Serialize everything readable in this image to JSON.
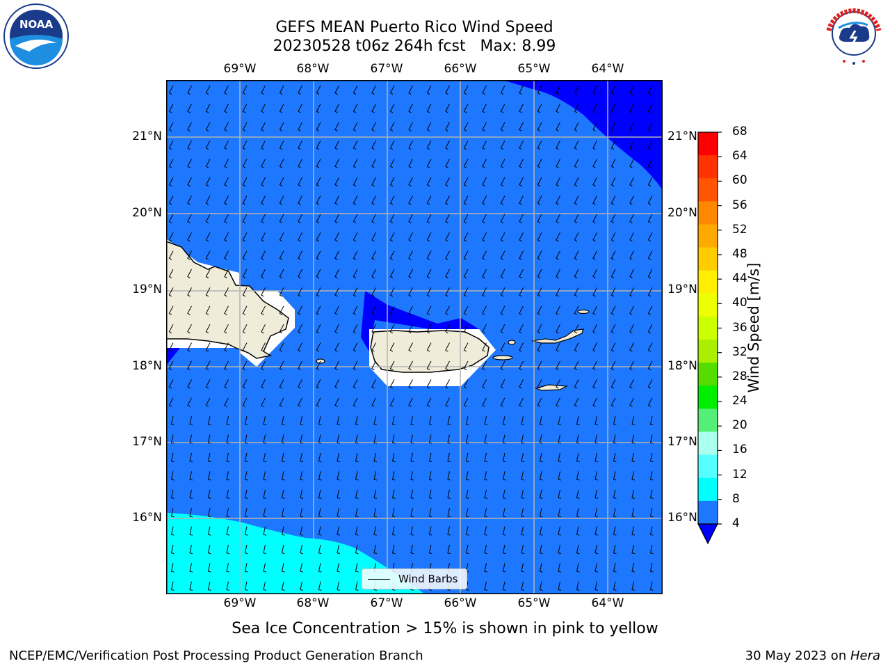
{
  "header": {
    "title_line1": "GEFS MEAN Puerto Rico Wind Speed",
    "title_line2": "20230528 t06z 264h fcst   Max: 8.99"
  },
  "logos": {
    "left": "NOAA",
    "right": "NATIONAL WEATHER SERVICE"
  },
  "map": {
    "lon_labels": [
      "69°W",
      "68°W",
      "67°W",
      "66°W",
      "65°W",
      "64°W"
    ],
    "lat_labels": [
      "21°N",
      "20°N",
      "19°N",
      "18°N",
      "17°N",
      "16°N"
    ],
    "legend_label": "Wind Barbs",
    "colors": {
      "band_4_8": "#1e78ff",
      "band_below_4": "#0000ff",
      "band_8_12": "#00ffff",
      "land": "#efedda"
    }
  },
  "colorbar": {
    "label": "Wind Speed [m/s]",
    "ticks": [
      "68",
      "64",
      "60",
      "56",
      "52",
      "48",
      "44",
      "40",
      "36",
      "32",
      "28",
      "24",
      "20",
      "16",
      "12",
      "8",
      "4"
    ],
    "colors": [
      "#ff0000",
      "#ff3300",
      "#ff5500",
      "#ff8800",
      "#ffaa00",
      "#ffcc00",
      "#ffee00",
      "#eeff00",
      "#ccff00",
      "#aaee00",
      "#55dd00",
      "#00ee00",
      "#55ee77",
      "#aaffee",
      "#55ffff",
      "#00ffff",
      "#1e78ff"
    ]
  },
  "note": "Sea Ice Concentration > 15% is shown in pink to yellow",
  "footer": {
    "left": "NCEP/EMC/Verification Post Processing Product Generation Branch",
    "right_date": "30 May 2023 on ",
    "right_machine": "Hera"
  }
}
